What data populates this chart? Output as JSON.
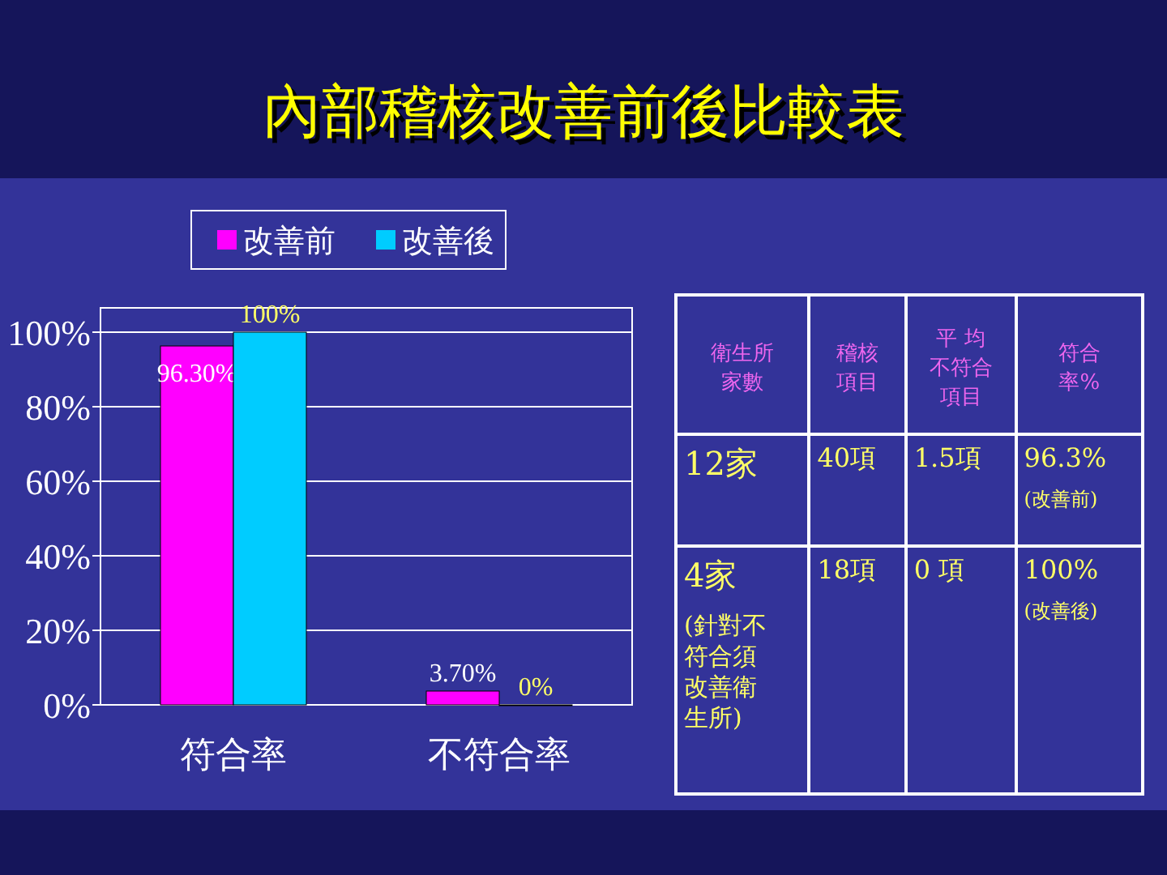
{
  "chart_data": [
    {
      "type": "bar",
      "title": "內部稽核改善前後比較表",
      "categories": [
        "符合率",
        "不符合率"
      ],
      "series": [
        {
          "name": "改善前",
          "color": "#ff00ff",
          "values": [
            96.3,
            3.7
          ],
          "value_labels": [
            "96.30%",
            "3.70%"
          ]
        },
        {
          "name": "改善後",
          "color": "#00ccff",
          "values": [
            100,
            0
          ],
          "value_labels": [
            "100%",
            "0%"
          ]
        }
      ],
      "ylim": [
        0,
        100
      ],
      "yticks": [
        {
          "value": 0,
          "label": "0%"
        },
        {
          "value": 20,
          "label": "20%"
        },
        {
          "value": 40,
          "label": "40%"
        },
        {
          "value": 60,
          "label": "60%"
        },
        {
          "value": 80,
          "label": "80%"
        },
        {
          "value": 100,
          "label": "100%"
        }
      ],
      "grid": "y",
      "legend": "top"
    },
    {
      "type": "other",
      "annotations": [
        "衛生所家數",
        "稽核項目",
        "平 均不符合項目",
        "符合率%",
        "12家",
        "40項",
        "1.5項",
        "96.3%",
        "(改善前)",
        "4家",
        "(針對不符合須改善衛生所)",
        "18項",
        "0 項",
        "100%",
        "(改善後)"
      ]
    }
  ]
}
